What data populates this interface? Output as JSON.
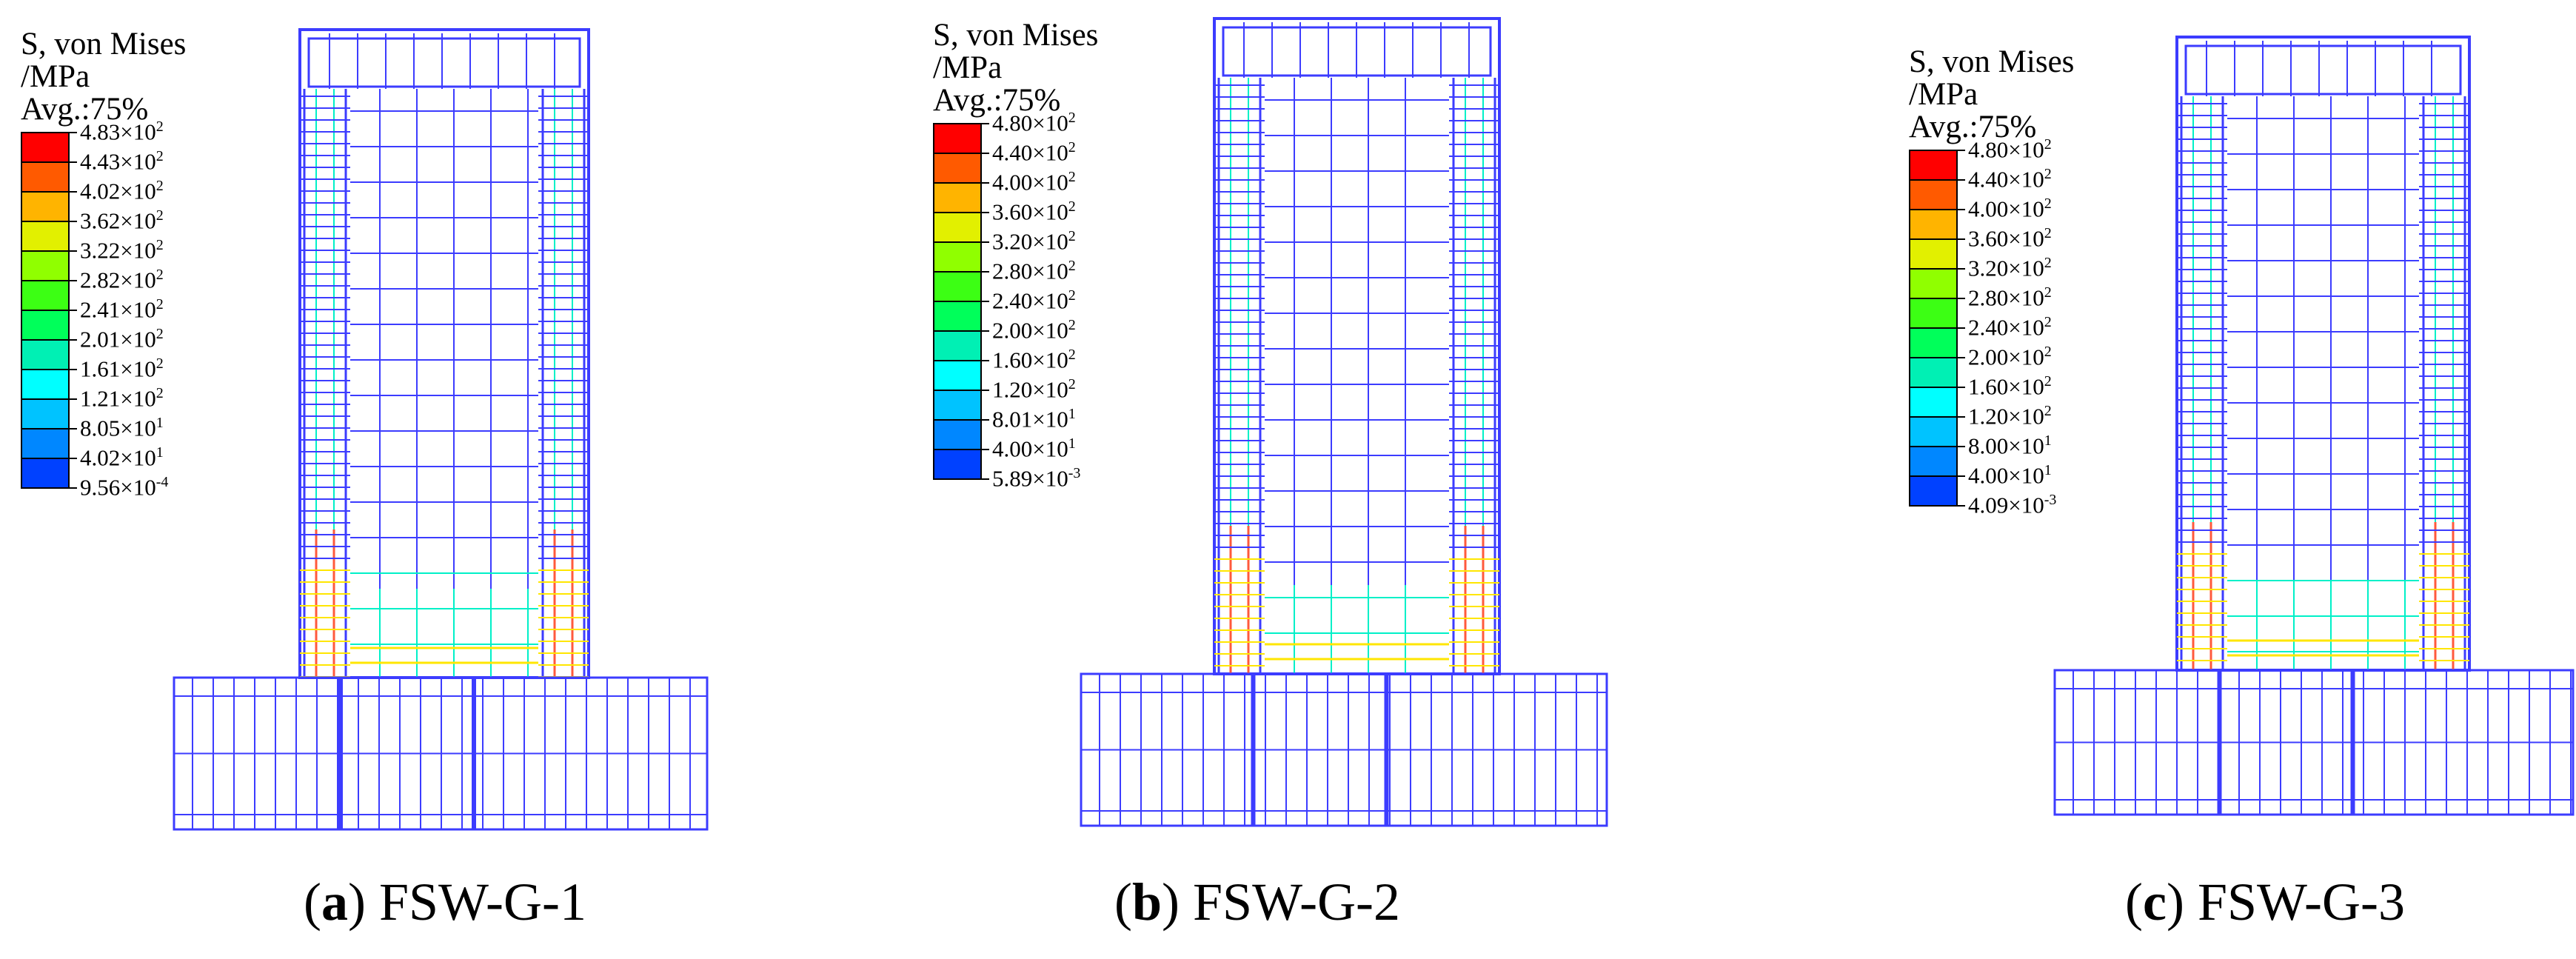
{
  "scale_colors": [
    "#ff0000",
    "#ff5a00",
    "#ffb400",
    "#e2f000",
    "#90ff00",
    "#3cff14",
    "#00ff5a",
    "#00f0b4",
    "#00ffff",
    "#00c3ff",
    "#0087ff",
    "#0041ff",
    "#0000ff"
  ],
  "line_colors": {
    "mesh": "#3c3cff",
    "high": "#ff5a3c",
    "mid": "#ffe600",
    "low": "#00f0c8"
  },
  "panels": [
    {
      "legend": {
        "title_line1": "S, von Mises",
        "title_line2": "/MPa",
        "title_line3": "Avg.:75%",
        "values": [
          {
            "mant": "4.83×10",
            "exp": "2"
          },
          {
            "mant": "4.43×10",
            "exp": "2"
          },
          {
            "mant": "4.02×10",
            "exp": "2"
          },
          {
            "mant": "3.62×10",
            "exp": "2"
          },
          {
            "mant": "3.22×10",
            "exp": "2"
          },
          {
            "mant": "2.82×10",
            "exp": "2"
          },
          {
            "mant": "2.41×10",
            "exp": "2"
          },
          {
            "mant": "2.01×10",
            "exp": "2"
          },
          {
            "mant": "1.61×10",
            "exp": "2"
          },
          {
            "mant": "1.21×10",
            "exp": "2"
          },
          {
            "mant": "8.05×10",
            "exp": "1"
          },
          {
            "mant": "4.02×10",
            "exp": "1"
          },
          {
            "mant": "9.56×10",
            "exp": "-4"
          }
        ]
      },
      "caption": {
        "open": "(",
        "letter": "a",
        "close": ")",
        "name": "FSW-G-1"
      }
    },
    {
      "legend": {
        "title_line1": "S, von Mises",
        "title_line2": "/MPa",
        "title_line3": "Avg.:75%",
        "values": [
          {
            "mant": "4.80×10",
            "exp": "2"
          },
          {
            "mant": "4.40×10",
            "exp": "2"
          },
          {
            "mant": "4.00×10",
            "exp": "2"
          },
          {
            "mant": "3.60×10",
            "exp": "2"
          },
          {
            "mant": "3.20×10",
            "exp": "2"
          },
          {
            "mant": "2.80×10",
            "exp": "2"
          },
          {
            "mant": "2.40×10",
            "exp": "2"
          },
          {
            "mant": "2.00×10",
            "exp": "2"
          },
          {
            "mant": "1.60×10",
            "exp": "2"
          },
          {
            "mant": "1.20×10",
            "exp": "2"
          },
          {
            "mant": "8.01×10",
            "exp": "1"
          },
          {
            "mant": "4.00×10",
            "exp": "1"
          },
          {
            "mant": "5.89×10",
            "exp": "-3"
          }
        ]
      },
      "caption": {
        "open": "(",
        "letter": "b",
        "close": ")",
        "name": "FSW-G-2"
      }
    },
    {
      "legend": {
        "title_line1": "S, von Mises",
        "title_line2": "/MPa",
        "title_line3": "Avg.:75%",
        "values": [
          {
            "mant": "4.80×10",
            "exp": "2"
          },
          {
            "mant": "4.40×10",
            "exp": "2"
          },
          {
            "mant": "4.00×10",
            "exp": "2"
          },
          {
            "mant": "3.60×10",
            "exp": "2"
          },
          {
            "mant": "3.20×10",
            "exp": "2"
          },
          {
            "mant": "2.80×10",
            "exp": "2"
          },
          {
            "mant": "2.40×10",
            "exp": "2"
          },
          {
            "mant": "2.00×10",
            "exp": "2"
          },
          {
            "mant": "1.60×10",
            "exp": "2"
          },
          {
            "mant": "1.20×10",
            "exp": "2"
          },
          {
            "mant": "8.00×10",
            "exp": "1"
          },
          {
            "mant": "4.00×10",
            "exp": "1"
          },
          {
            "mant": "4.09×10",
            "exp": "-3"
          }
        ]
      },
      "caption": {
        "open": "(",
        "letter": "c",
        "close": ")",
        "name": "FSW-G-3"
      }
    }
  ]
}
